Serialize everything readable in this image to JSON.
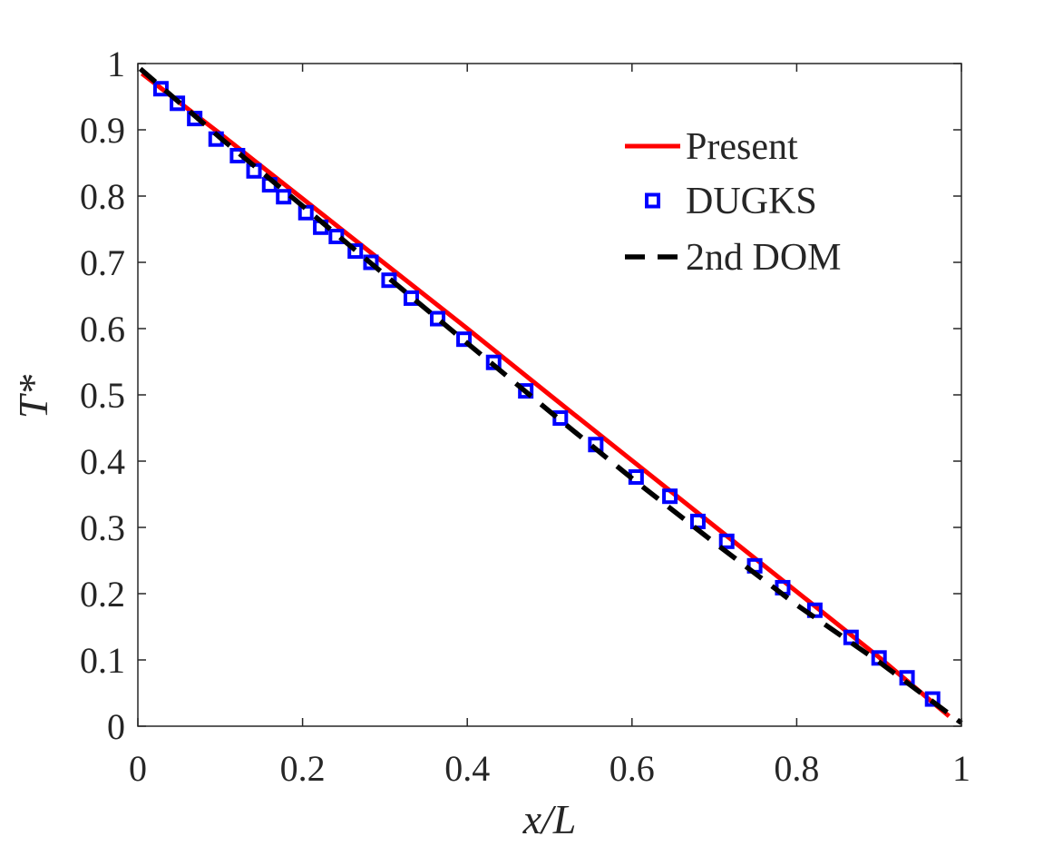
{
  "chart_data": {
    "type": "line",
    "xlabel": "x/L",
    "ylabel": "T*",
    "xlim": [
      0,
      1
    ],
    "ylim": [
      0,
      1
    ],
    "xticks": [
      0,
      0.2,
      0.4,
      0.6,
      0.8,
      1
    ],
    "xtick_labels": [
      "0",
      "0.2",
      "0.4",
      "0.6",
      "0.8",
      "1"
    ],
    "yticks": [
      0,
      0.1,
      0.2,
      0.3,
      0.4,
      0.5,
      0.6,
      0.7,
      0.8,
      0.9,
      1
    ],
    "ytick_labels": [
      "0",
      "0.1",
      "0.2",
      "0.3",
      "0.4",
      "0.5",
      "0.6",
      "0.7",
      "0.8",
      "0.9",
      "1"
    ],
    "grid": false,
    "legend_position": "top-right",
    "series": [
      {
        "name": "Present",
        "style": "solid-line",
        "color": "#ff0000",
        "x": [
          0.005,
          0.1,
          0.2,
          0.3,
          0.4,
          0.5,
          0.6,
          0.7,
          0.8,
          0.9,
          0.985
        ],
        "y": [
          0.985,
          0.894,
          0.796,
          0.698,
          0.6,
          0.5,
          0.401,
          0.302,
          0.203,
          0.104,
          0.015
        ]
      },
      {
        "name": "DUGKS",
        "style": "square-marker",
        "color": "#0000ff",
        "x": [
          0.028,
          0.048,
          0.069,
          0.095,
          0.121,
          0.141,
          0.16,
          0.177,
          0.204,
          0.222,
          0.241,
          0.264,
          0.283,
          0.305,
          0.332,
          0.364,
          0.396,
          0.432,
          0.471,
          0.513,
          0.556,
          0.605,
          0.646,
          0.68,
          0.715,
          0.749,
          0.783,
          0.822,
          0.866,
          0.9,
          0.934,
          0.965
        ],
        "y": [
          0.962,
          0.94,
          0.917,
          0.886,
          0.861,
          0.838,
          0.817,
          0.799,
          0.775,
          0.753,
          0.739,
          0.717,
          0.7,
          0.673,
          0.646,
          0.615,
          0.584,
          0.549,
          0.506,
          0.465,
          0.425,
          0.376,
          0.347,
          0.309,
          0.279,
          0.242,
          0.209,
          0.175,
          0.134,
          0.103,
          0.073,
          0.041
        ]
      },
      {
        "name": "2nd DOM",
        "style": "dashed-line",
        "color": "#000000",
        "x": [
          0.003,
          0.1,
          0.2,
          0.3,
          0.4,
          0.5,
          0.6,
          0.7,
          0.8,
          0.9,
          1.0
        ],
        "y": [
          0.992,
          0.888,
          0.785,
          0.681,
          0.578,
          0.475,
          0.374,
          0.277,
          0.183,
          0.097,
          0.005
        ]
      }
    ]
  }
}
